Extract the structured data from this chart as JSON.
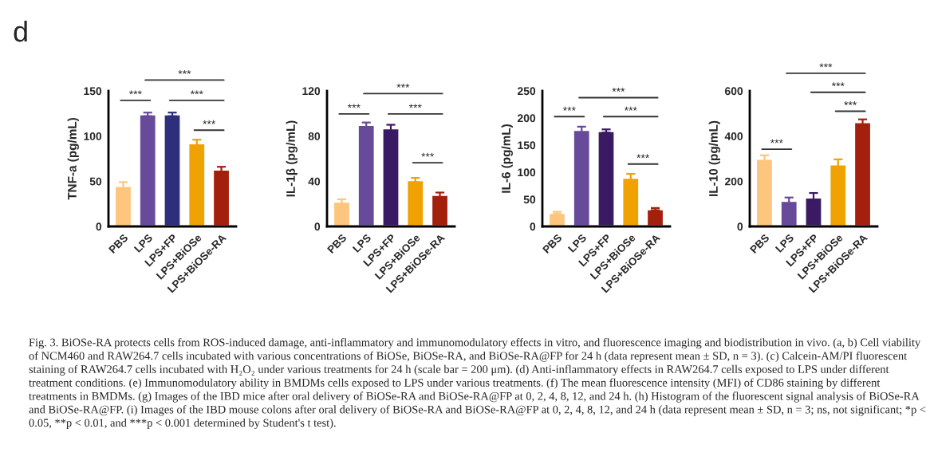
{
  "chart_data": [
    {
      "type": "bar",
      "title": "d",
      "ylabel": "TNF-a (pg/mL)",
      "categories": [
        "PBS",
        "LPS",
        "LPS+FP",
        "LPS+BiOSe",
        "LPS+BiOSe-RA"
      ],
      "values": [
        45,
        124,
        124,
        92,
        63
      ],
      "errors": [
        4,
        2,
        2,
        4,
        3
      ],
      "colors": [
        "#fdc57e",
        "#684a9a",
        "#2d2e7c",
        "#f0a202",
        "#a3200d"
      ],
      "ylim": [
        0,
        150
      ],
      "yticks": [
        0,
        50,
        100,
        150
      ],
      "grid": false,
      "legend": false,
      "annotations": [
        "***",
        "***",
        "***",
        "***",
        "Fig. 3. BiOSe-RA protects cells from ROS-induced damage, anti-inflammatory and immunomodulatory effects in vitro, and fluorescence imaging and biodistribution in vivo. (a, b) Cell viability of NCM460 and RAW264.7 cells incubated with various concentrations of BiOSe, BiOSe-RA, and BiOSe-RA@FP for 24 h (data represent mean ± SD, n = 3). (c) Calcein-AM/PI fluorescent staining of RAW264.7 cells incubated with H₂O₂ under various treatments for 24 h (scale bar = 200 μm). (d) Anti-inflammatory effects in RAW264.7 cells exposed to LPS under different treatment conditions. (e) Immunomodulatory ability in BMDMs cells exposed to LPS under various treatments. (f) The mean fluorescence intensity (MFI) of CD86 staining by different treatments in BMDMs. (g) Images of the IBD mice after oral delivery of BiOSe-RA and BiOSe-RA@FP at 0, 2, 4, 8, 12, and 24 h. (h) Histogram of the fluorescent signal analysis of BiOSe-RA and BiOSe-RA@FP. (i) Images of the IBD mouse colons after oral delivery of BiOSe-RA and BiOSe-RA@FP at 0, 2, 4, 8, 12, and 24 h (data represent mean ± SD, n = 3; ns, not significant; *p < 0.05, **p < 0.01, and ***p < 0.001 determined by Student's t test)."
      ]
    },
    {
      "type": "bar",
      "ylabel": "IL-1β (pg/mL)",
      "categories": [
        "PBS",
        "LPS",
        "LPS+FP",
        "LPS+BiOSe",
        "LPS+BiOSe-RA"
      ],
      "values": [
        22,
        90,
        87,
        41,
        28
      ],
      "errors": [
        2,
        2,
        3,
        2,
        2
      ],
      "colors": [
        "#fdc57e",
        "#684a9a",
        "#3a1a62",
        "#f0a202",
        "#a3200d"
      ],
      "ylim": [
        0,
        120
      ],
      "yticks": [
        0,
        40,
        80,
        120
      ],
      "grid": false,
      "legend": false,
      "annotations": [
        "***",
        "***",
        "***",
        "***"
      ]
    },
    {
      "type": "bar",
      "ylabel": "IL-6 (pg/mL)",
      "categories": [
        "PBS",
        "LPS",
        "LPS+FP",
        "LPS+BiOSe",
        "LPS+BiOSe-RA"
      ],
      "values": [
        25,
        178,
        176,
        90,
        32
      ],
      "errors": [
        2,
        6,
        3,
        7,
        2
      ],
      "colors": [
        "#fdc57e",
        "#684a9a",
        "#3a1a62",
        "#f0a202",
        "#a3200d"
      ],
      "ylim": [
        0,
        250
      ],
      "yticks": [
        0,
        50,
        100,
        150,
        200,
        250
      ],
      "grid": false,
      "legend": false,
      "annotations": [
        "***",
        "***",
        "***",
        "***"
      ]
    },
    {
      "type": "bar",
      "ylabel": "IL-10 (pg/mL)",
      "categories": [
        "PBS",
        "LPS",
        "LPS+FP",
        "LPS+BiOSe",
        "LPS+BiOSe-RA"
      ],
      "values": [
        300,
        113,
        128,
        275,
        462
      ],
      "errors": [
        15,
        15,
        20,
        22,
        12
      ],
      "colors": [
        "#fdc57e",
        "#684a9a",
        "#3a1a62",
        "#f0a202",
        "#a3200d"
      ],
      "ylim": [
        0,
        600
      ],
      "yticks": [
        0,
        200,
        400,
        600
      ],
      "grid": false,
      "legend": false,
      "annotations": [
        "***",
        "***",
        "***",
        "***"
      ]
    }
  ]
}
